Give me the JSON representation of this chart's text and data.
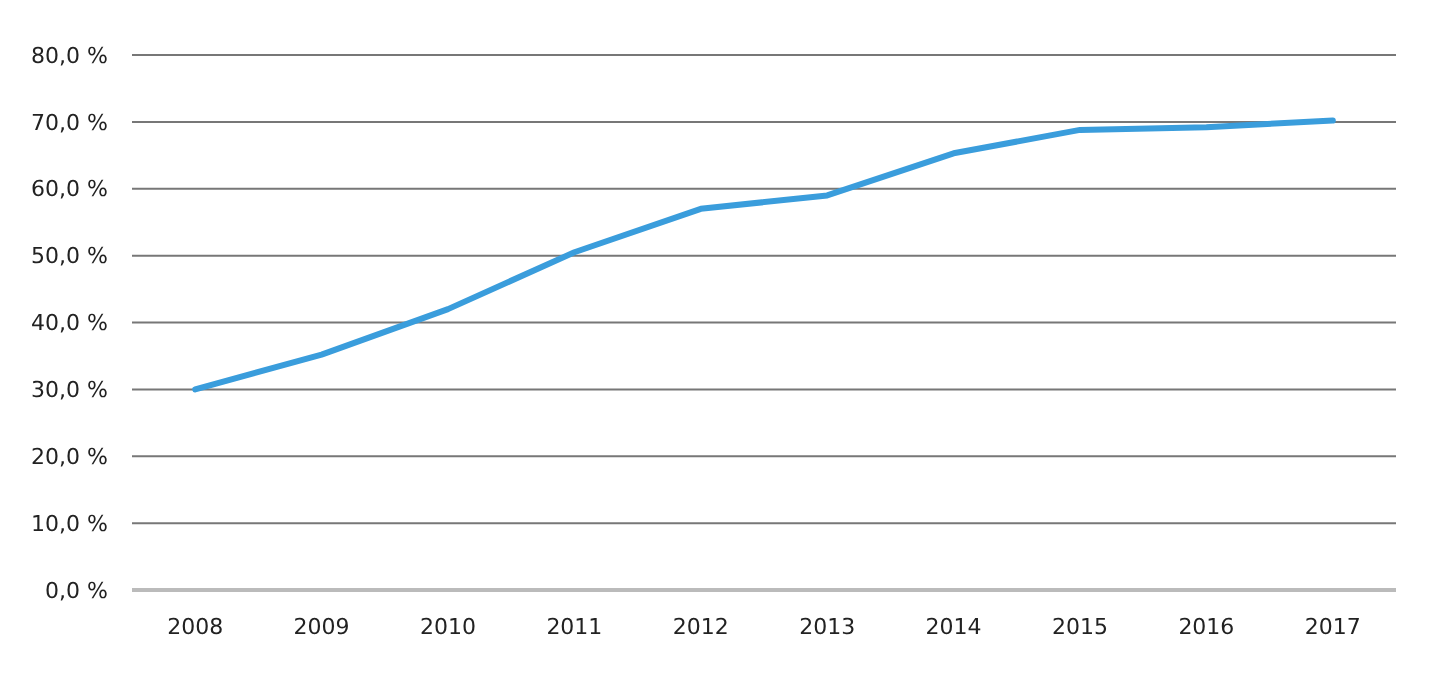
{
  "chart_data": {
    "type": "line",
    "categories": [
      "2008",
      "2009",
      "2010",
      "2011",
      "2012",
      "2013",
      "2014",
      "2015",
      "2016",
      "2017"
    ],
    "series": [
      {
        "color": "#3a9ddc",
        "values": [
          30,
          35.2,
          42,
          50.5,
          57,
          59,
          65.3,
          68.8,
          69.2,
          70.2
        ]
      }
    ],
    "ylim": [
      0,
      80
    ],
    "yticks": [
      {
        "value": 0,
        "label": "0,0 %"
      },
      {
        "value": 10,
        "label": "10,0 %"
      },
      {
        "value": 20,
        "label": "20,0 %"
      },
      {
        "value": 30,
        "label": "30,0 %"
      },
      {
        "value": 40,
        "label": "40,0 %"
      },
      {
        "value": 50,
        "label": "50,0 %"
      },
      {
        "value": 60,
        "label": "60,0 %"
      },
      {
        "value": 70,
        "label": "70,0 %"
      },
      {
        "value": 80,
        "label": "80,0 %"
      }
    ],
    "grid": "y",
    "marker": "none",
    "line_style": "solid"
  }
}
